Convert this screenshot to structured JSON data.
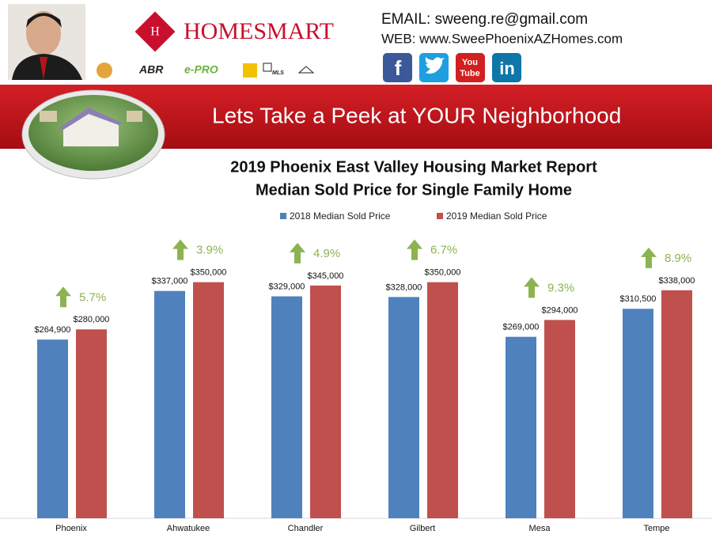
{
  "header": {
    "brand": "HOMESMART",
    "email": "EMAIL: sweeng.re@gmail.com",
    "web": "WEB: www.SweePhoenixAZHomes.com",
    "badges": [
      "ABR",
      "e-PRO",
      "MLS"
    ],
    "social": [
      "f",
      "You",
      "Tube",
      "in"
    ],
    "banner": "Lets Take a Peek at YOUR Neighborhood"
  },
  "chart_data": {
    "type": "bar",
    "title": "2019 Phoenix East Valley Housing Market Report",
    "subtitle": "Median Sold Price for Single Family Home",
    "categories": [
      "Phoenix",
      "Ahwatukee",
      "Chandler",
      "Gilbert",
      "Mesa",
      "Tempe"
    ],
    "series": [
      {
        "name": "2018 Median Sold Price",
        "color": "#4f81bd",
        "values": [
          264900,
          337000,
          329000,
          328000,
          269000,
          310500
        ],
        "value_labels": [
          "$264,900",
          "$337,000",
          "$329,000",
          "$328,000",
          "$269,000",
          "$310,500"
        ]
      },
      {
        "name": "2019 Median Sold Price",
        "color": "#c0504d",
        "values": [
          280000,
          350000,
          345000,
          350000,
          294000,
          338000
        ],
        "value_labels": [
          "$280,000",
          "$350,000",
          "$345,000",
          "$350,000",
          "$294,000",
          "$338,000"
        ]
      }
    ],
    "change": {
      "color": "#8db350",
      "values": [
        5.7,
        3.9,
        4.9,
        6.7,
        9.3,
        8.9
      ],
      "value_labels": [
        "5.7%",
        "3.9%",
        "4.9%",
        "6.7%",
        "9.3%",
        "8.9%"
      ]
    },
    "ylim": [
      0,
      400000
    ],
    "legend": "top"
  }
}
